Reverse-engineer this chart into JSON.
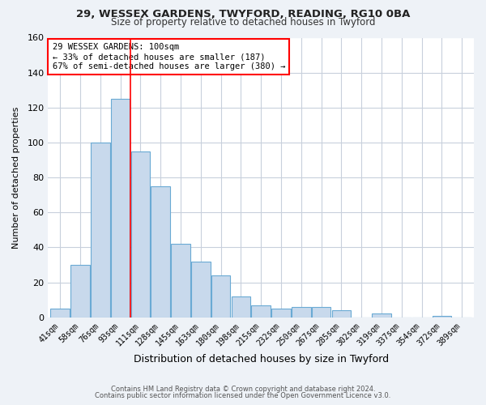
{
  "title1": "29, WESSEX GARDENS, TWYFORD, READING, RG10 0BA",
  "title2": "Size of property relative to detached houses in Twyford",
  "xlabel": "Distribution of detached houses by size in Twyford",
  "ylabel": "Number of detached properties",
  "bar_labels": [
    "41sqm",
    "58sqm",
    "76sqm",
    "93sqm",
    "111sqm",
    "128sqm",
    "145sqm",
    "163sqm",
    "180sqm",
    "198sqm",
    "215sqm",
    "232sqm",
    "250sqm",
    "267sqm",
    "285sqm",
    "302sqm",
    "319sqm",
    "337sqm",
    "354sqm",
    "372sqm",
    "389sqm"
  ],
  "bar_values": [
    5,
    30,
    100,
    125,
    95,
    75,
    42,
    32,
    24,
    12,
    7,
    5,
    6,
    6,
    4,
    0,
    2,
    0,
    0,
    1,
    0
  ],
  "bar_color": "#c8d9ec",
  "bar_edge_color": "#6aaad4",
  "ylim": [
    0,
    160
  ],
  "yticks": [
    0,
    20,
    40,
    60,
    80,
    100,
    120,
    140,
    160
  ],
  "annotation_title": "29 WESSEX GARDENS: 100sqm",
  "annotation_line1": "← 33% of detached houses are smaller (187)",
  "annotation_line2": "67% of semi-detached houses are larger (380) →",
  "red_line_x": 3.5,
  "bg_color": "#eef2f7",
  "plot_bg_color": "#ffffff",
  "grid_color": "#c8d0dc",
  "footer1": "Contains HM Land Registry data © Crown copyright and database right 2024.",
  "footer2": "Contains public sector information licensed under the Open Government Licence v3.0."
}
